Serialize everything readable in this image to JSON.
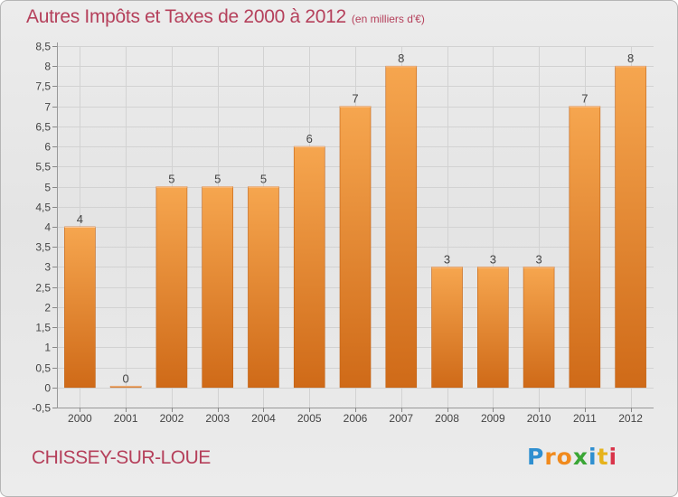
{
  "title": "Autres Impôts et Taxes de 2000 à 2012",
  "subtitle": "(en milliers d'€)",
  "commune": "CHISSEY-SUR-LOUE",
  "logo": {
    "letters": [
      "P",
      "r",
      "o",
      "x",
      "i",
      "t",
      "i"
    ],
    "colors": [
      "#2f8fd0",
      "#f18a1d",
      "#f18a1d",
      "#3aa635",
      "#2f8fd0",
      "#e6b31c",
      "#d9344a"
    ]
  },
  "colors": {
    "bar_light": "#f6a64f",
    "bar_dark": "#cf6a18",
    "title": "#b5405b"
  },
  "chart_data": {
    "type": "bar",
    "categories": [
      "2000",
      "2001",
      "2002",
      "2003",
      "2004",
      "2005",
      "2006",
      "2007",
      "2008",
      "2009",
      "2010",
      "2011",
      "2012"
    ],
    "values": [
      4,
      0,
      5,
      5,
      5,
      6,
      7,
      8,
      3,
      3,
      3,
      7,
      8
    ],
    "data_labels": [
      "4",
      "0",
      "5",
      "5",
      "5",
      "6",
      "7",
      "8",
      "3",
      "3",
      "3",
      "7",
      "8"
    ],
    "yticks": [
      "-0,5",
      "0",
      "0,5",
      "1",
      "1,5",
      "2",
      "2,5",
      "3",
      "3,5",
      "4",
      "4,5",
      "5",
      "5,5",
      "6",
      "6,5",
      "7",
      "7,5",
      "8",
      "8,5"
    ],
    "ylim": [
      -0.5,
      8.5
    ],
    "grid": true
  }
}
